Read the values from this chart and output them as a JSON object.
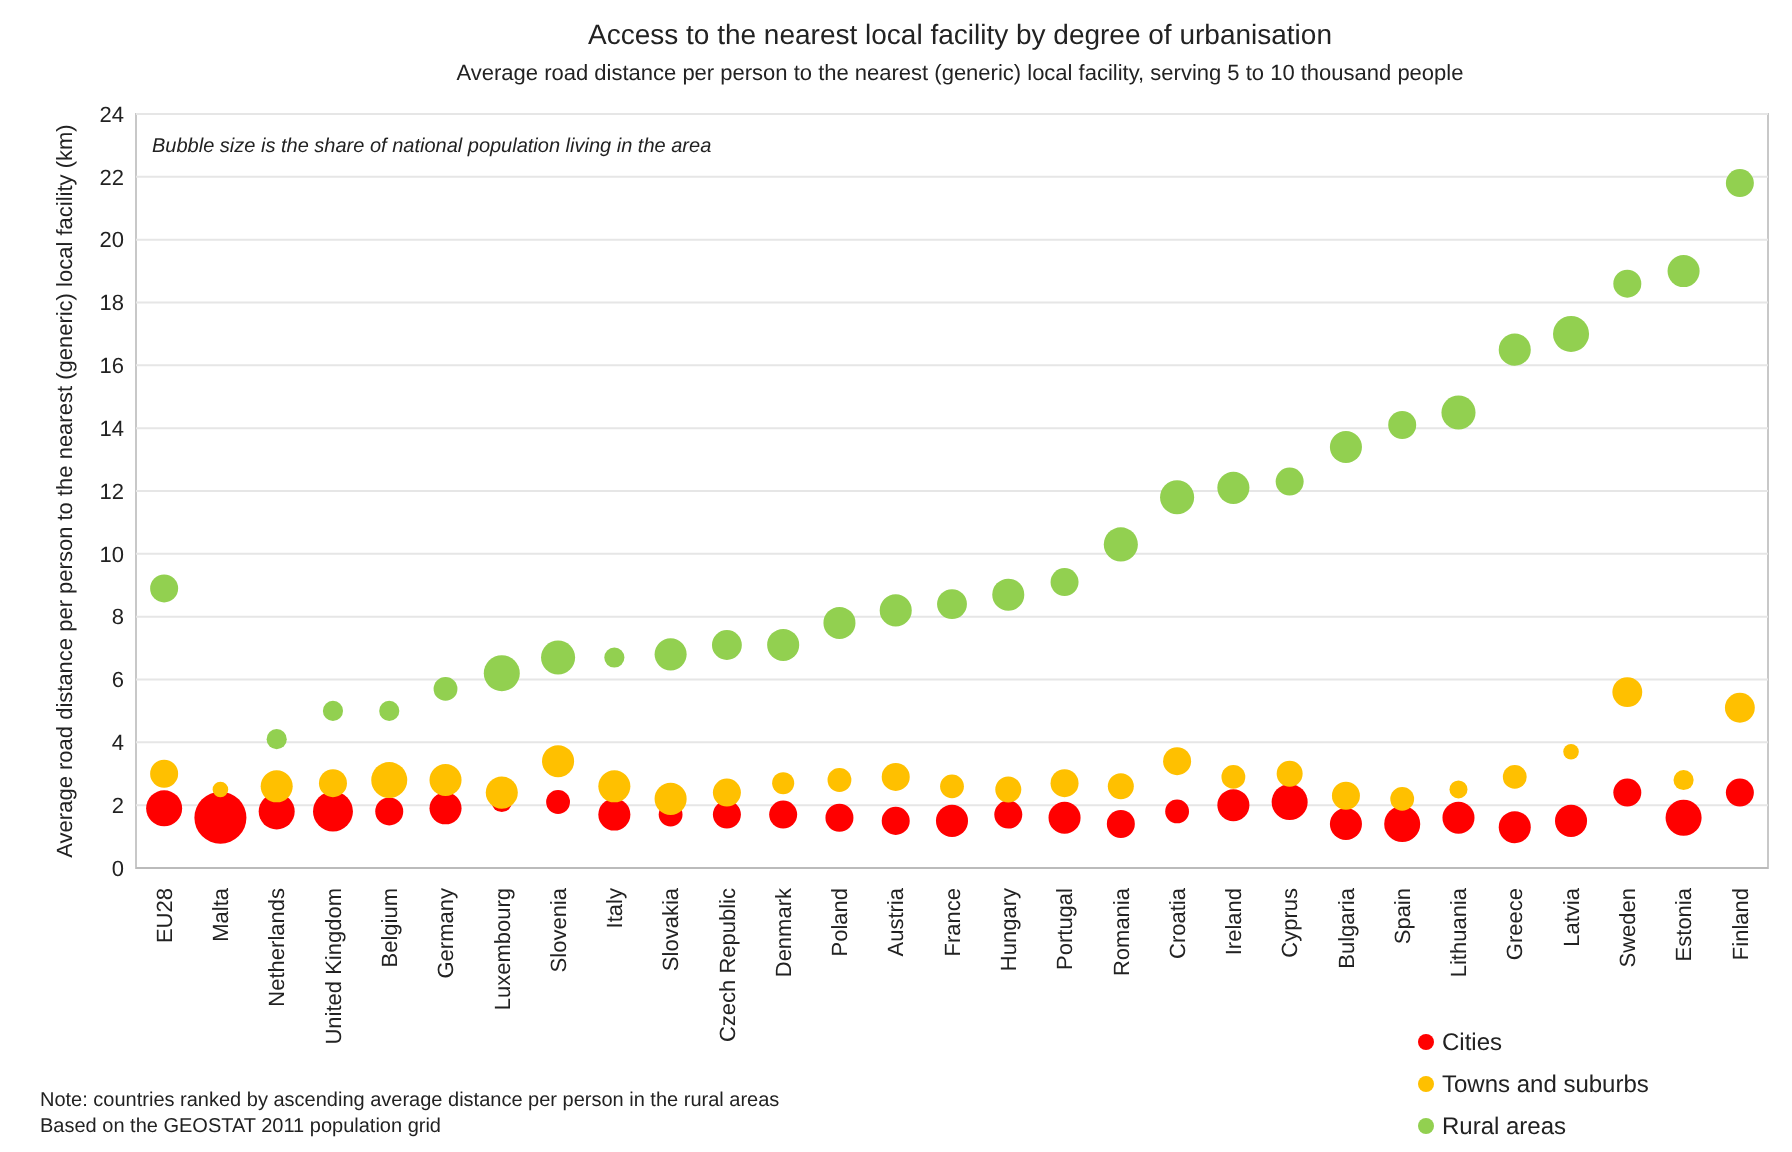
{
  "chart_data": {
    "type": "bubble",
    "title": "Access to the nearest local facility by degree of urbanisation",
    "subtitle": "Average road distance per person to the nearest (generic) local facility, serving 5 to 10 thousand people",
    "ylabel": "Average road distance per person to the nearest (generic) local facility (km)",
    "categories": [
      "EU28",
      "Malta",
      "Netherlands",
      "United Kingdom",
      "Belgium",
      "Germany",
      "Luxembourg",
      "Slovenia",
      "Italy",
      "Slovakia",
      "Czech Republic",
      "Denmark",
      "Poland",
      "Austria",
      "France",
      "Hungary",
      "Portugal",
      "Romania",
      "Croatia",
      "Ireland",
      "Cyprus",
      "Bulgaria",
      "Spain",
      "Lithuania",
      "Greece",
      "Latvia",
      "Sweden",
      "Estonia",
      "Finland"
    ],
    "series": [
      {
        "name": "Cities",
        "color": "#ff0000",
        "values": [
          1.9,
          1.6,
          1.8,
          1.8,
          1.8,
          1.9,
          2.1,
          2.1,
          1.7,
          1.7,
          1.7,
          1.7,
          1.6,
          1.5,
          1.5,
          1.7,
          1.6,
          1.4,
          1.8,
          2.0,
          2.1,
          1.4,
          1.4,
          1.6,
          1.3,
          1.5,
          2.4,
          1.6,
          2.4
        ],
        "sizes": [
          0.48,
          1,
          0.48,
          0.59,
          0.29,
          0.38,
          0.15,
          0.21,
          0.38,
          0.21,
          0.29,
          0.29,
          0.29,
          0.29,
          0.38,
          0.29,
          0.38,
          0.29,
          0.21,
          0.38,
          0.48,
          0.38,
          0.48,
          0.38,
          0.38,
          0.38,
          0.29,
          0.48,
          0.29
        ]
      },
      {
        "name": "Towns and suburbs",
        "color": "#ffc000",
        "values": [
          3.0,
          2.5,
          2.6,
          2.7,
          2.8,
          2.8,
          2.4,
          3.4,
          2.6,
          2.2,
          2.4,
          2.7,
          2.8,
          2.9,
          2.6,
          2.5,
          2.7,
          2.6,
          3.4,
          2.9,
          3.0,
          2.3,
          2.2,
          2.5,
          2.9,
          3.7,
          5.6,
          2.8,
          5.1
        ],
        "sizes": [
          0.29,
          0.09,
          0.38,
          0.29,
          0.48,
          0.38,
          0.38,
          0.38,
          0.38,
          0.38,
          0.29,
          0.18,
          0.21,
          0.29,
          0.21,
          0.25,
          0.29,
          0.25,
          0.29,
          0.21,
          0.25,
          0.29,
          0.21,
          0.12,
          0.21,
          0.09,
          0.33,
          0.15,
          0.33
        ]
      },
      {
        "name": "Rural areas",
        "color": "#92d050",
        "values": [
          8.9,
          null,
          4.1,
          5.0,
          5.0,
          5.7,
          6.2,
          6.7,
          6.7,
          6.8,
          7.1,
          7.1,
          7.8,
          8.2,
          8.4,
          8.7,
          9.1,
          10.3,
          11.8,
          12.1,
          12.3,
          13.4,
          14.1,
          14.5,
          16.5,
          17.0,
          18.6,
          19.0,
          21.8
        ],
        "sizes": [
          0.29,
          null,
          0.15,
          0.15,
          0.15,
          0.21,
          0.48,
          0.43,
          0.15,
          0.38,
          0.33,
          0.38,
          0.38,
          0.38,
          0.33,
          0.38,
          0.29,
          0.43,
          0.43,
          0.38,
          0.29,
          0.38,
          0.29,
          0.43,
          0.38,
          0.48,
          0.29,
          0.38,
          0.29
        ]
      }
    ],
    "ylim": [
      0,
      24
    ],
    "yticks": [
      0,
      2,
      4,
      6,
      8,
      10,
      12,
      14,
      16,
      18,
      20,
      22,
      24
    ],
    "grid": "y",
    "legend": "bottom right",
    "annotations": [
      "Bubble size is the share of national population living in the area",
      "Note: countries ranked by ascending average distance per person in the rural areas",
      "Based on the GEOSTAT 2011 population grid"
    ]
  }
}
